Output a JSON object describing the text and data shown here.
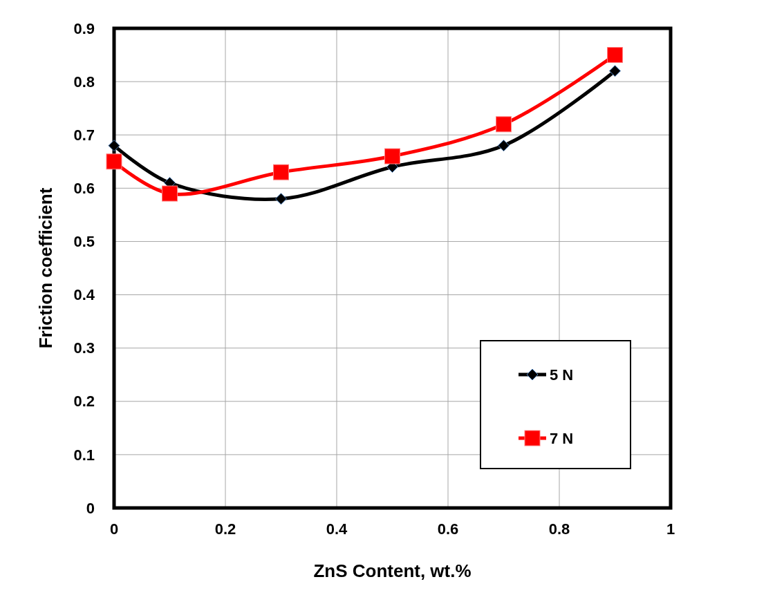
{
  "chart_data": {
    "type": "line",
    "xlabel": "ZnS Content, wt.%",
    "ylabel": "Friction coefficient",
    "x": [
      0,
      0.1,
      0.3,
      0.5,
      0.7,
      0.9
    ],
    "series": [
      {
        "name": "5 N",
        "color": "#000000",
        "marker": "diamond",
        "values": [
          0.68,
          0.61,
          0.58,
          0.64,
          0.68,
          0.82
        ]
      },
      {
        "name": "7 N",
        "color": "#ff0000",
        "marker": "square",
        "values": [
          0.65,
          0.59,
          0.63,
          0.66,
          0.72,
          0.85
        ]
      }
    ],
    "xlim": [
      0,
      1
    ],
    "xticks": [
      0,
      0.2,
      0.4,
      0.6,
      0.8,
      1
    ],
    "ylim": [
      0,
      0.9
    ],
    "yticks": [
      0,
      0.1,
      0.2,
      0.3,
      0.4,
      0.5,
      0.6,
      0.7,
      0.8,
      0.9
    ],
    "grid": true,
    "legend": "bottom right",
    "line_style": "solid"
  }
}
